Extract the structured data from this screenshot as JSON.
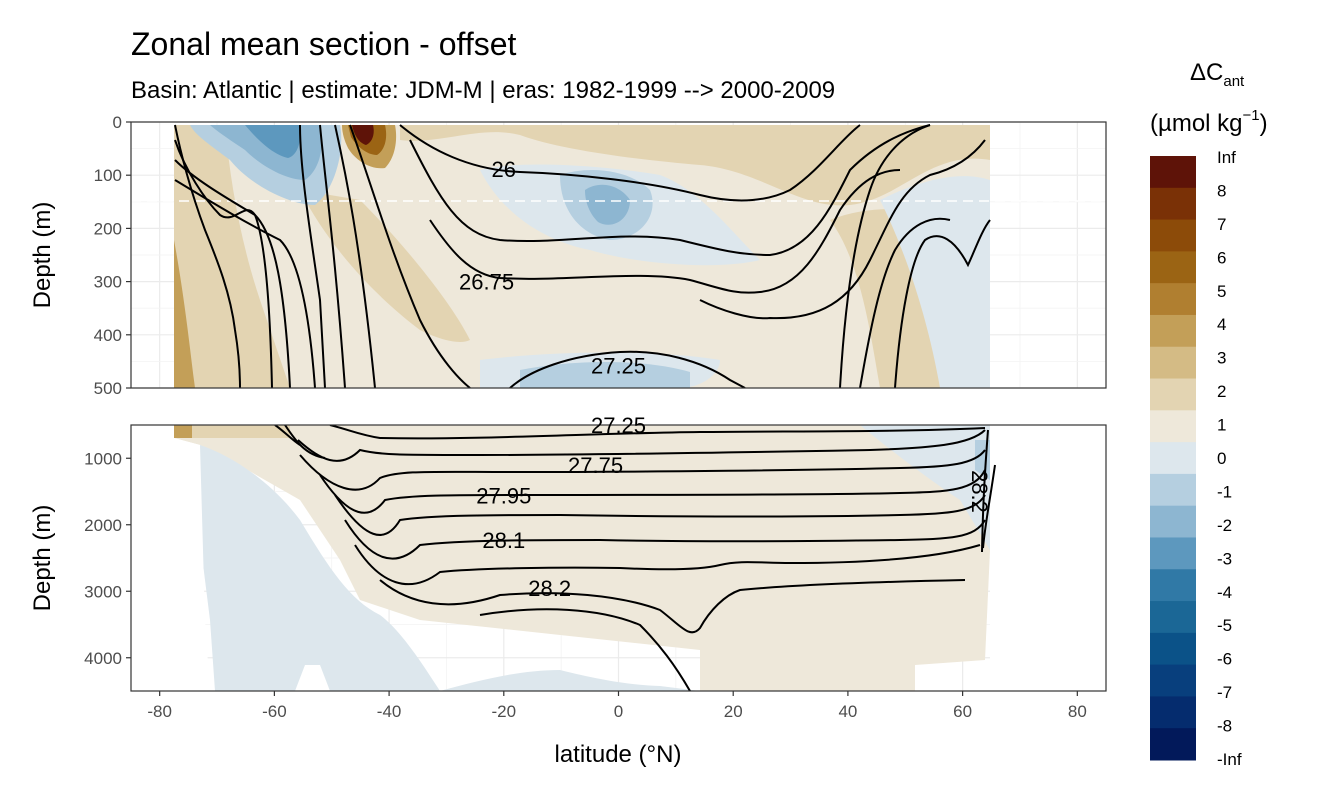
{
  "chart_data": {
    "type": "heatmap",
    "title": "Zonal mean section - offset",
    "subtitle": "Basin: Atlantic | estimate: JDM-M | eras: 1982-1999 --> 2000-2009",
    "xlabel": "latitude (°N)",
    "ylabel": "Depth (m)",
    "xlim": [
      -85,
      85
    ],
    "x_ticks": [
      "-80",
      "-60",
      "-40",
      "-20",
      "0",
      "20",
      "40",
      "60",
      "80"
    ],
    "x_tick_values": [
      -80,
      -60,
      -40,
      -20,
      0,
      20,
      40,
      60,
      80
    ],
    "panels": [
      {
        "name": "upper",
        "ylim": [
          0,
          500
        ],
        "y_ticks": [
          "0",
          "100",
          "200",
          "300",
          "400",
          "500"
        ],
        "y_tick_values": [
          0,
          100,
          200,
          300,
          400,
          500
        ],
        "reference_depth": 150,
        "contour_labels": [
          {
            "text": "26",
            "lat": -20,
            "depth": 88
          },
          {
            "text": "26.75",
            "lat": -23,
            "depth": 300
          },
          {
            "text": "27.25",
            "lat": 0,
            "depth": 458
          }
        ]
      },
      {
        "name": "lower",
        "ylim": [
          500,
          4500
        ],
        "y_ticks": [
          "1000",
          "2000",
          "3000",
          "4000"
        ],
        "y_tick_values": [
          1000,
          2000,
          3000,
          4000
        ],
        "contour_labels": [
          {
            "text": "27.25",
            "lat": 0,
            "depth": 500
          },
          {
            "text": "27.75",
            "lat": -4,
            "depth": 1100
          },
          {
            "text": "27.95",
            "lat": -20,
            "depth": 1560
          },
          {
            "text": "28.1",
            "lat": -20,
            "depth": 2230
          },
          {
            "text": "28.2",
            "lat": -12,
            "depth": 2950
          },
          {
            "text": "28.2",
            "lat": 63,
            "depth": 1500
          }
        ]
      }
    ],
    "density_contours": [
      "26",
      "26.75",
      "27.25",
      "27.75",
      "27.95",
      "28.1",
      "28.2"
    ],
    "legend": {
      "title": "ΔC",
      "title_subscript": "ant",
      "units": "(µmol kg",
      "units_superscript": "−1",
      "units_close": ")",
      "labels": [
        "Inf",
        "8",
        "7",
        "6",
        "5",
        "4",
        "3",
        "2",
        "1",
        "0",
        "-1",
        "-2",
        "-3",
        "-4",
        "-5",
        "-6",
        "-7",
        "-8",
        "-Inf"
      ],
      "colors": [
        "#5e1308",
        "#7a3106",
        "#8c4b09",
        "#9b6414",
        "#b07f30",
        "#c39f58",
        "#d4bb85",
        "#e3d4b2",
        "#eee8da",
        "#dde7ed",
        "#b5cfe0",
        "#8db6d1",
        "#5d98be",
        "#3079a6",
        "#1b6796",
        "#0b5288",
        "#083f7d",
        "#052c6e",
        "#02195a"
      ]
    }
  }
}
